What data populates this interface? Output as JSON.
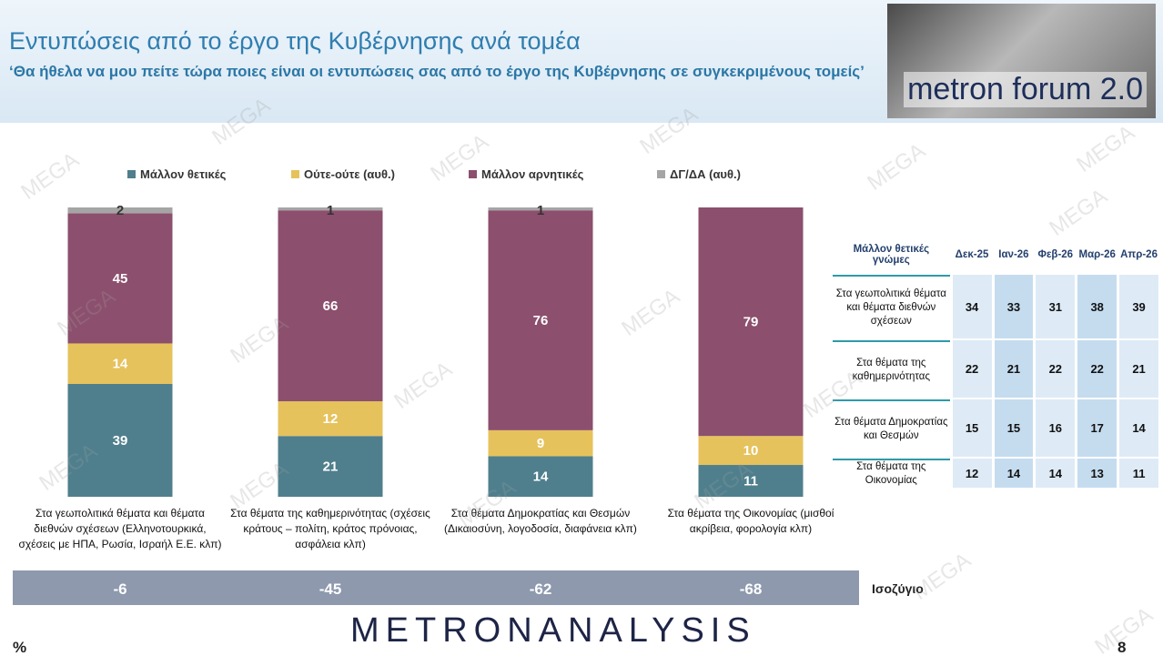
{
  "header": {
    "title": "Εντυπώσεις από το έργο της Κυβέρνησης ανά τομέα",
    "subtitle": "‘Θα ήθελα να μου πείτε τώρα ποιες είναι οι εντυπώσεις σας από το έργο της Κυβέρνησης σε συγκεκριμένους τομείς’",
    "logo": "metron forum 2.0"
  },
  "chart_data": {
    "type": "stacked-bar",
    "categories": [
      "Στα γεωπολιτικά θέματα και θέματα διεθνών σχέσεων (Ελληνοτουρκικά, σχέσεις με ΗΠΑ, Ρωσία, Ισραήλ Ε.Ε. κλπ)",
      "Στα θέματα της καθημερινότητας (σχέσεις κράτους – πολίτη, κράτος πρόνοιας, ασφάλεια κλπ)",
      "Στα θέματα Δημοκρατίας και Θεσμών (Δικαιοσύνη, λογοδοσία, διαφάνεια κλπ)",
      "Στα θέματα της Οικονομίας (μισθοί ακρίβεια, φορολογία κλπ)"
    ],
    "series": [
      {
        "name": "Μάλλον θετικές",
        "color": "#4f7f8d",
        "values": [
          39,
          21,
          14,
          11
        ]
      },
      {
        "name": "Ούτε-ούτε  (αυθ.)",
        "color": "#e6c25c",
        "values": [
          14,
          12,
          9,
          10
        ]
      },
      {
        "name": "Μάλλον αρνητικές",
        "color": "#8c4f6d",
        "values": [
          45,
          66,
          76,
          79
        ]
      },
      {
        "name": "ΔΓ/ΔΑ (αυθ.)",
        "color": "#a5a5a5",
        "values": [
          2,
          1,
          1,
          0
        ]
      }
    ],
    "ylim": [
      0,
      100
    ],
    "balance": {
      "label": "Ισοζύγιο",
      "values": [
        -6,
        -45,
        -62,
        -68
      ]
    }
  },
  "table": {
    "header": "Μάλλον θετικές γνώμες",
    "columns": [
      "Δεκ-25",
      "Ιαν-26",
      "Φεβ-26",
      "Μαρ-26",
      "Απρ-26"
    ],
    "rows": [
      {
        "label": "Στα γεωπολιτικά θέματα και θέματα διεθνών σχέσεων",
        "values": [
          34,
          33,
          31,
          38,
          39
        ]
      },
      {
        "label": "Στα θέματα της καθημερινότητας",
        "values": [
          22,
          21,
          22,
          22,
          21
        ]
      },
      {
        "label": "Στα θέματα Δημοκρατίας και Θεσμών",
        "values": [
          15,
          15,
          16,
          17,
          14
        ]
      },
      {
        "label": "Στα θέματα της Οικονομίας",
        "values": [
          12,
          14,
          14,
          13,
          11
        ]
      }
    ]
  },
  "footer": {
    "brand": "METRONANALYSIS",
    "unit": "%",
    "page": "8"
  },
  "watermark": "MEGA"
}
